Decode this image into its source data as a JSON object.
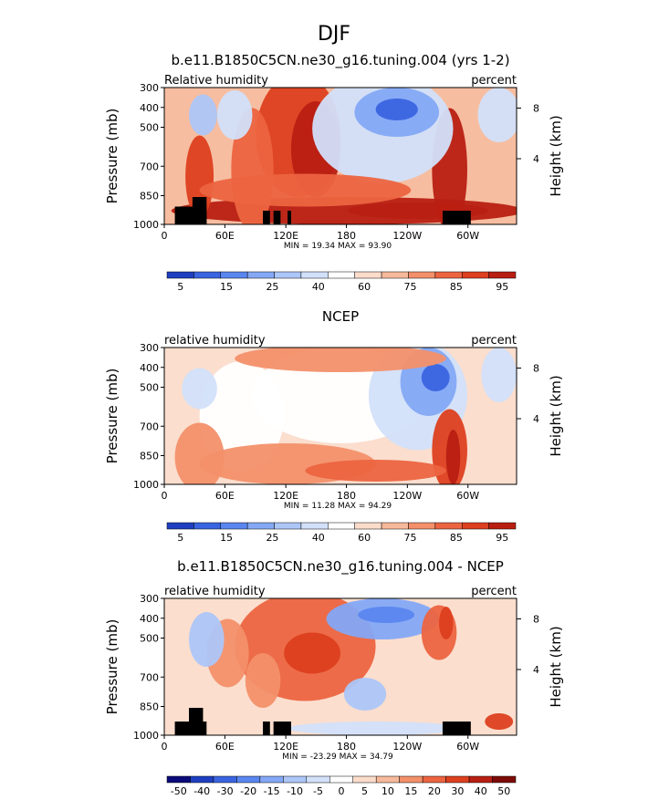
{
  "page_title": "DJF",
  "chart_data": [
    {
      "type": "heatmap",
      "title": "b.e11.B1850C5CN.ne30_g16.tuning.004 (yrs 1-2)",
      "left_label": "Relative humidity",
      "right_label": "percent",
      "ylabel": "Pressure (mb)",
      "ylabel_right": "Height (km)",
      "y_ticks": [
        "300",
        "400",
        "500",
        "700",
        "850",
        "1000"
      ],
      "y_ticks_right": [
        "8",
        "4"
      ],
      "x_ticks": [
        "0",
        "60E",
        "120E",
        "180",
        "120W",
        "60W"
      ],
      "stats": "MIN = 19.34 MAX = 93.90",
      "colorbar_labels": [
        "5",
        "15",
        "25",
        "40",
        "60",
        "75",
        "85",
        "95"
      ]
    },
    {
      "type": "heatmap",
      "title": "NCEP",
      "left_label": "relative humidity",
      "right_label": "percent",
      "ylabel": "Pressure (mb)",
      "ylabel_right": "Height (km)",
      "y_ticks": [
        "300",
        "400",
        "500",
        "700",
        "850",
        "1000"
      ],
      "y_ticks_right": [
        "8",
        "4"
      ],
      "x_ticks": [
        "0",
        "60E",
        "120E",
        "180",
        "120W",
        "60W"
      ],
      "stats": "MIN = 11.28 MAX = 94.29",
      "colorbar_labels": [
        "5",
        "15",
        "25",
        "40",
        "60",
        "75",
        "85",
        "95"
      ]
    },
    {
      "type": "heatmap",
      "title": "b.e11.B1850C5CN.ne30_g16.tuning.004 - NCEP",
      "left_label": "relative humidity",
      "right_label": "percent",
      "ylabel": "Pressure (mb)",
      "ylabel_right": "Height (km)",
      "y_ticks": [
        "300",
        "400",
        "500",
        "700",
        "850",
        "1000"
      ],
      "y_ticks_right": [
        "8",
        "4"
      ],
      "x_ticks": [
        "0",
        "60E",
        "120E",
        "180",
        "120W",
        "60W"
      ],
      "stats": "MIN = -23.29 MAX = 34.79",
      "colorbar_labels": [
        "-50",
        "-40",
        "-30",
        "-20",
        "-15",
        "-10",
        "-5",
        "0",
        "5",
        "10",
        "15",
        "20",
        "30",
        "40",
        "50"
      ]
    }
  ],
  "palette": [
    "#0a0a7a",
    "#1f3fc0",
    "#3a64e0",
    "#5a86ef",
    "#84a8f5",
    "#adc6f8",
    "#d2e0fa",
    "#ffffff",
    "#fbdccb",
    "#f7b99b",
    "#f3906a",
    "#ec6440",
    "#dd3f1f",
    "#b81f12",
    "#7d0b07"
  ]
}
